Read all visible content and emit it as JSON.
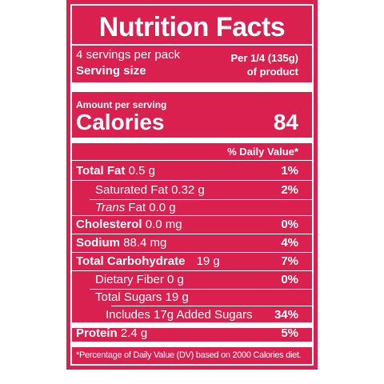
{
  "title": "Nutrition Facts",
  "servings": {
    "per_pack": "4 servings per pack",
    "serving_size_label": "Serving size",
    "portion": "Per 1/4 (135g)",
    "of_product": "of product"
  },
  "amount_per_serving": "Amount per serving",
  "calories": {
    "label": "Calories",
    "value": "84"
  },
  "daily_value_header": "% Daily Value*",
  "nutrients": [
    {
      "name": "Total Fat",
      "amount": "0.5 g",
      "dv": "1%"
    },
    {
      "name": "Saturated Fat",
      "amount": "0.32 g",
      "dv": "2%"
    },
    {
      "name": "Trans",
      "name_rest": "Fat",
      "amount": "0.0 g",
      "dv": ""
    },
    {
      "name": "Cholesterol",
      "amount": "0.0 mg",
      "dv": "0%"
    },
    {
      "name": "Sodium",
      "amount": "88.4 mg",
      "dv": "4%"
    },
    {
      "name": "Total Carbohydrate",
      "amount": "19 g",
      "dv": "7%"
    },
    {
      "name": "Dietary Fiber",
      "amount": "0 g",
      "dv": "0%"
    },
    {
      "name": "Total Sugars",
      "amount": "19 g",
      "dv": ""
    },
    {
      "name": "Includes 17g",
      "amount": "Added Sugars",
      "dv": "34%"
    },
    {
      "name": "Protein",
      "amount": "2.4 g",
      "dv": "5%"
    }
  ],
  "footnote": "*Percentage of Daily Value (DV) based on 2000 Calories diet.",
  "colors": {
    "background": "#d9204f",
    "text": "#ffffff"
  }
}
